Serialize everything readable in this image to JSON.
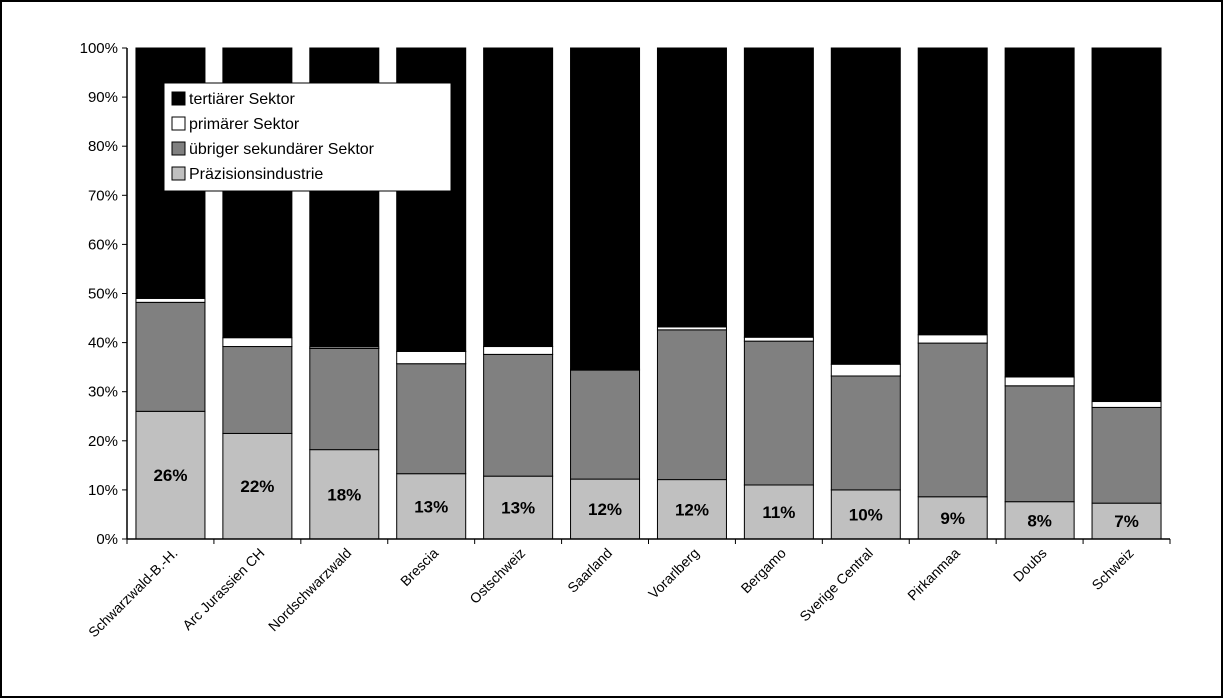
{
  "chart_data": {
    "type": "bar",
    "stacked": true,
    "percent_stacked": true,
    "title": "",
    "xlabel": "",
    "ylabel": "",
    "ylim": [
      0,
      100
    ],
    "y_ticks": [
      "0%",
      "10%",
      "20%",
      "30%",
      "40%",
      "50%",
      "60%",
      "70%",
      "80%",
      "90%",
      "100%"
    ],
    "grid": false,
    "legend_position": "top-left",
    "categories": [
      "Schwarzwald-B.-H.",
      "Arc Jurassien CH",
      "Nordschwarzwald",
      "Brescia",
      "Ostschweiz",
      "Saarland",
      "Vorarlberg",
      "Bergamo",
      "Sverige Central",
      "Pirkanmaa",
      "Doubs",
      "Schweiz"
    ],
    "series": [
      {
        "name": "Präzisionsindustrie",
        "color": "#c0c0c0",
        "values": [
          26,
          21.5,
          18.2,
          13.3,
          12.8,
          12.2,
          12.1,
          11,
          10,
          8.6,
          7.6,
          7.3
        ]
      },
      {
        "name": "übriger sekundärer Sektor",
        "color": "#808080",
        "values": [
          22.2,
          17.7,
          20.6,
          22.4,
          24.8,
          22.2,
          30.5,
          29.3,
          23.2,
          31.3,
          23.6,
          19.5
        ]
      },
      {
        "name": "primärer Sektor",
        "color": "#ffffff",
        "values": [
          0.8,
          1.8,
          0.3,
          2.5,
          1.6,
          0.2,
          0.6,
          0.8,
          2.4,
          1.7,
          1.8,
          1.2
        ]
      },
      {
        "name": "tertiärer Sektor",
        "color": "#000000",
        "values": [
          51,
          59,
          60.9,
          61.8,
          60.8,
          65.4,
          56.8,
          58.9,
          64.4,
          58.4,
          67,
          72
        ]
      }
    ],
    "data_labels": [
      "26%",
      "22%",
      "18%",
      "13%",
      "13%",
      "12%",
      "12%",
      "11%",
      "10%",
      "9%",
      "8%",
      "7%"
    ],
    "legend": [
      {
        "label": "tertiärer Sektor",
        "color": "#000000"
      },
      {
        "label": "primärer Sektor",
        "color": "#ffffff"
      },
      {
        "label": "übriger sekundärer Sektor",
        "color": "#808080"
      },
      {
        "label": "Präzisionsindustrie",
        "color": "#c0c0c0"
      }
    ]
  }
}
